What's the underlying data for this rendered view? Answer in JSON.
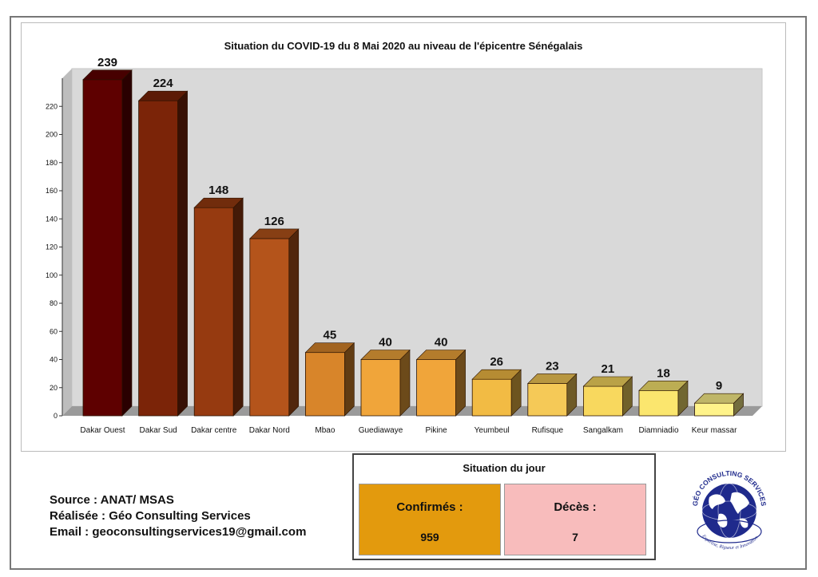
{
  "chart_data": {
    "type": "bar",
    "title": "Situation du COVID-19 du 8  Mai  2020 au niveau de l'épicentre Sénégalais",
    "categories": [
      "Dakar Ouest",
      "Dakar Sud",
      "Dakar centre",
      "Dakar Nord",
      "Mbao",
      "Guediawaye",
      "Pikine",
      "Yeumbeul",
      "Rufisque",
      "Sangalkam",
      "Diamniadio",
      "Keur massar"
    ],
    "values": [
      239,
      224,
      148,
      126,
      45,
      40,
      40,
      26,
      23,
      21,
      18,
      9
    ],
    "colors": [
      "#5e0000",
      "#7b2408",
      "#963a10",
      "#b4541b",
      "#d8852a",
      "#f0a53a",
      "#f0a53a",
      "#f2bb44",
      "#f5c957",
      "#f8d85e",
      "#fbe66e",
      "#fff38a"
    ],
    "yticks": [
      0,
      20,
      40,
      60,
      80,
      100,
      120,
      140,
      160,
      180,
      200,
      220
    ],
    "ylim": [
      0,
      240
    ],
    "data_labels": true,
    "style": "3d",
    "xlabel": "",
    "ylabel": ""
  },
  "footer": {
    "source": "Source : ANAT/ MSAS",
    "realisee": "Réalisée : Géo Consulting Services",
    "email": "Email : geoconsultingservices19@gmail.com"
  },
  "situation": {
    "title": "Situation du jour",
    "confirmes_label": "Confirmés :",
    "confirmes_value": "959",
    "deces_label": "Décès :",
    "deces_value": "7"
  },
  "logo": {
    "top_text": "GÉO CONSULTING SERVICES",
    "bottom_text": "Expertise, Rigueur et Innovation",
    "icon": "globe-icon"
  }
}
